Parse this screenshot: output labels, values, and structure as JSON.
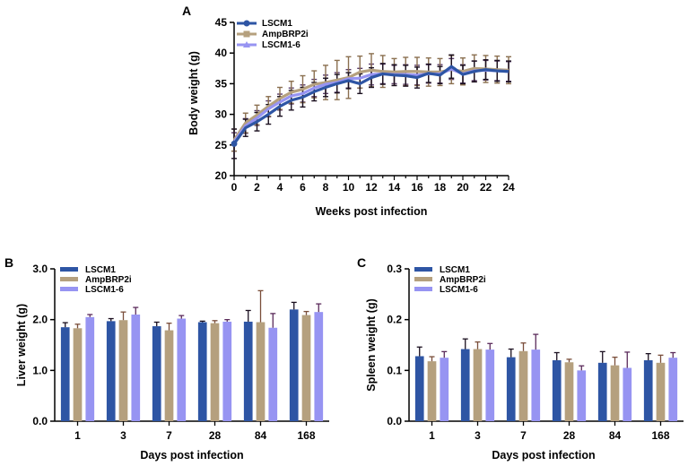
{
  "colors": {
    "s1": "#2E55A4",
    "s2": "#B5A07E",
    "s3": "#9794F2",
    "err": "#1a0f1f",
    "axis": "#000000"
  },
  "chart_data": [
    {
      "panel": "A",
      "type": "line",
      "xlabel": "Weeks post infection",
      "ylabel": "Body weight (g)",
      "xlim": [
        0,
        24
      ],
      "ylim": [
        20,
        45
      ],
      "xticks": [
        "0",
        "2",
        "4",
        "6",
        "8",
        "10",
        "12",
        "14",
        "16",
        "18",
        "20",
        "22",
        "24"
      ],
      "yticks": [
        "20",
        "25",
        "30",
        "35",
        "40",
        "45"
      ],
      "legend": [
        "LSCM1",
        "AmpBRP2i",
        "LSCM1-6"
      ],
      "x": [
        0,
        1,
        2,
        3,
        4,
        5,
        6,
        7,
        8,
        9,
        10,
        11,
        12,
        13,
        14,
        15,
        16,
        17,
        18,
        19,
        20,
        21,
        22,
        23,
        24
      ],
      "series": [
        {
          "name": "LSCM1",
          "values": [
            25.2,
            27.8,
            28.8,
            30.0,
            31.3,
            32.3,
            32.8,
            33.7,
            34.4,
            35.0,
            35.5,
            35.0,
            36.0,
            36.6,
            36.4,
            36.3,
            36.0,
            36.7,
            36.4,
            37.8,
            36.5,
            37.0,
            37.3,
            37.1,
            37.0
          ],
          "errors": [
            2.4,
            1.4,
            1.5,
            1.6,
            1.6,
            1.6,
            1.6,
            1.5,
            1.5,
            1.5,
            1.3,
            1.6,
            1.6,
            1.7,
            1.7,
            1.7,
            1.7,
            1.5,
            1.4,
            1.9,
            1.5,
            1.7,
            1.6,
            1.7,
            1.7
          ]
        },
        {
          "name": "AmpBRP2i",
          "values": [
            25.8,
            28.6,
            29.9,
            31.3,
            32.6,
            33.6,
            34.1,
            34.9,
            35.2,
            35.6,
            36.0,
            36.9,
            37.2,
            37.0,
            36.9,
            37.0,
            37.0,
            36.9,
            36.9,
            37.3,
            37.0,
            37.5,
            37.4,
            37.3,
            37.2
          ],
          "errors": [
            1.8,
            1.6,
            1.6,
            1.6,
            1.8,
            1.8,
            2.2,
            2.2,
            2.8,
            3.2,
            3.4,
            2.6,
            2.7,
            2.6,
            2.2,
            2.3,
            2.3,
            2.3,
            2.2,
            2.3,
            2.2,
            2.2,
            2.2,
            2.2,
            2.2
          ]
        },
        {
          "name": "LSCM1-6",
          "values": [
            25.5,
            28.1,
            29.4,
            30.9,
            32.0,
            33.0,
            33.4,
            34.3,
            34.9,
            35.2,
            35.8,
            35.9,
            36.5,
            36.6,
            36.5,
            36.5,
            36.4,
            36.6,
            36.6,
            37.4,
            36.6,
            37.1,
            37.2,
            37.1,
            37.0
          ],
          "errors": [
            1.5,
            1.2,
            1.2,
            1.3,
            1.3,
            1.3,
            1.4,
            1.4,
            1.5,
            1.6,
            1.5,
            1.6,
            1.7,
            1.6,
            1.5,
            1.6,
            1.6,
            1.5,
            1.5,
            1.7,
            1.5,
            1.6,
            1.6,
            1.6,
            1.6
          ]
        }
      ]
    },
    {
      "panel": "B",
      "type": "bar",
      "xlabel": "Days post infection",
      "ylabel": "Liver weight (g)",
      "ylim": [
        0,
        3
      ],
      "yticks": [
        "0.0",
        "1.0",
        "2.0",
        "3.0"
      ],
      "categories": [
        "1",
        "3",
        "7",
        "28",
        "84",
        "168"
      ],
      "legend": [
        "LSCM1",
        "AmpBRP2i",
        "LSCM1-6"
      ],
      "series": [
        {
          "name": "LSCM1",
          "values": [
            1.85,
            1.97,
            1.87,
            1.95,
            1.96,
            2.2
          ],
          "errors": [
            0.09,
            0.05,
            0.08,
            0.02,
            0.22,
            0.14
          ]
        },
        {
          "name": "AmpBRP2i",
          "values": [
            1.83,
            1.99,
            1.79,
            1.93,
            1.95,
            2.09
          ],
          "errors": [
            0.08,
            0.16,
            0.14,
            0.05,
            0.62,
            0.07
          ]
        },
        {
          "name": "LSCM1-6",
          "values": [
            2.05,
            2.1,
            2.02,
            1.96,
            1.84,
            2.15
          ],
          "errors": [
            0.05,
            0.14,
            0.06,
            0.04,
            0.28,
            0.16
          ]
        }
      ]
    },
    {
      "panel": "C",
      "type": "bar",
      "xlabel": "Days post infection",
      "ylabel": "Spleen weight (g)",
      "ylim": [
        0,
        0.3
      ],
      "yticks": [
        "0.0",
        "0.1",
        "0.2",
        "0.3"
      ],
      "categories": [
        "1",
        "3",
        "7",
        "28",
        "84",
        "168"
      ],
      "legend": [
        "LSCM1",
        "AmpBRP2i",
        "LSCM1-6"
      ],
      "series": [
        {
          "name": "LSCM1",
          "values": [
            0.128,
            0.142,
            0.126,
            0.12,
            0.115,
            0.12
          ],
          "errors": [
            0.018,
            0.02,
            0.016,
            0.015,
            0.022,
            0.013
          ]
        },
        {
          "name": "AmpBRP2i",
          "values": [
            0.118,
            0.142,
            0.138,
            0.116,
            0.11,
            0.115
          ],
          "errors": [
            0.009,
            0.014,
            0.016,
            0.006,
            0.016,
            0.015
          ]
        },
        {
          "name": "LSCM1-6",
          "values": [
            0.125,
            0.141,
            0.141,
            0.1,
            0.105,
            0.125
          ],
          "errors": [
            0.012,
            0.012,
            0.03,
            0.009,
            0.031,
            0.01
          ]
        }
      ]
    }
  ]
}
